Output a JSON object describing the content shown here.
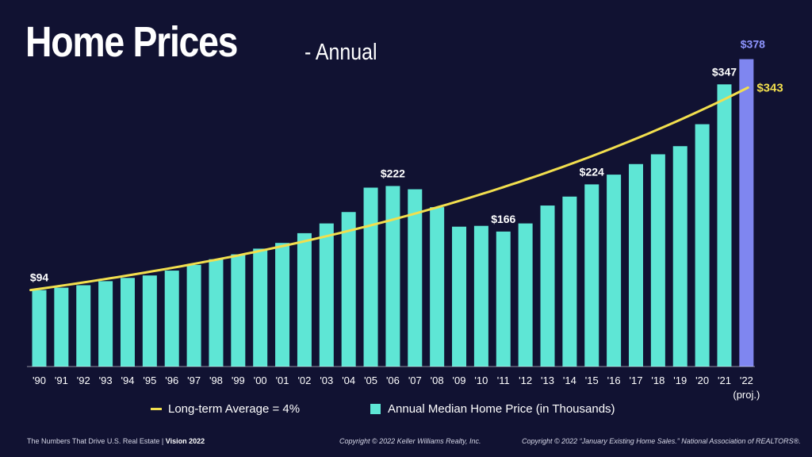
{
  "title": "Home Prices",
  "subtitle": "- Annual",
  "colors": {
    "background": "#111232",
    "bar": "#5ee6d5",
    "projected_bar": "#7f86f0",
    "trend_line": "#f2df4e",
    "projected_label": "#8e95ff",
    "trend_label": "#f2df4e",
    "label": "#ffffff"
  },
  "legend": {
    "trend": "Long-term Average = 4%",
    "bars": "Annual Median Home Price (in Thousands)"
  },
  "footer": {
    "left_text": "The Numbers That Drive U.S. Real Estate",
    "separator": "|",
    "left_bold": "Vision 2022",
    "center": "Copyright © 2022 Keller Williams Realty, Inc.",
    "right": "Copyright © 2022 “January Existing Home Sales.” National Association of REALTORS®."
  },
  "chart_data": {
    "type": "bar",
    "categories": [
      "'90",
      "'91",
      "'92",
      "'93",
      "'94",
      "'95",
      "'96",
      "'97",
      "'98",
      "'99",
      "'00",
      "'01",
      "'02",
      "'03",
      "'04",
      "'05",
      "'06",
      "'07",
      "'08",
      "'09",
      "'10",
      "'11",
      "'12",
      "'13",
      "'14",
      "'15",
      "'16",
      "'17",
      "'18",
      "'19",
      "'20",
      "'21",
      "'22"
    ],
    "category_note": {
      "index": 32,
      "text": "(proj.)"
    },
    "series": [
      {
        "name": "Annual Median Home Price (in Thousands)",
        "values": [
          94,
          97,
          100,
          105,
          109,
          112,
          118,
          125,
          132,
          138,
          145,
          152,
          164,
          176,
          190,
          220,
          222,
          218,
          196,
          172,
          173,
          166,
          176,
          198,
          209,
          224,
          236,
          249,
          261,
          271,
          298,
          347,
          378
        ],
        "projected_index": 32
      }
    ],
    "trend": {
      "name": "Long-term Average = 4%",
      "start_value": 94,
      "end_value": 343,
      "label": "$343"
    },
    "data_labels": [
      {
        "index": 0,
        "text": "$94"
      },
      {
        "index": 16,
        "text": "$222"
      },
      {
        "index": 21,
        "text": "$166"
      },
      {
        "index": 25,
        "text": "$224"
      },
      {
        "index": 31,
        "text": "$347"
      },
      {
        "index": 32,
        "text": "$378"
      }
    ],
    "ylim": [
      0,
      400
    ],
    "grid": false,
    "legend_position": "bottom"
  }
}
